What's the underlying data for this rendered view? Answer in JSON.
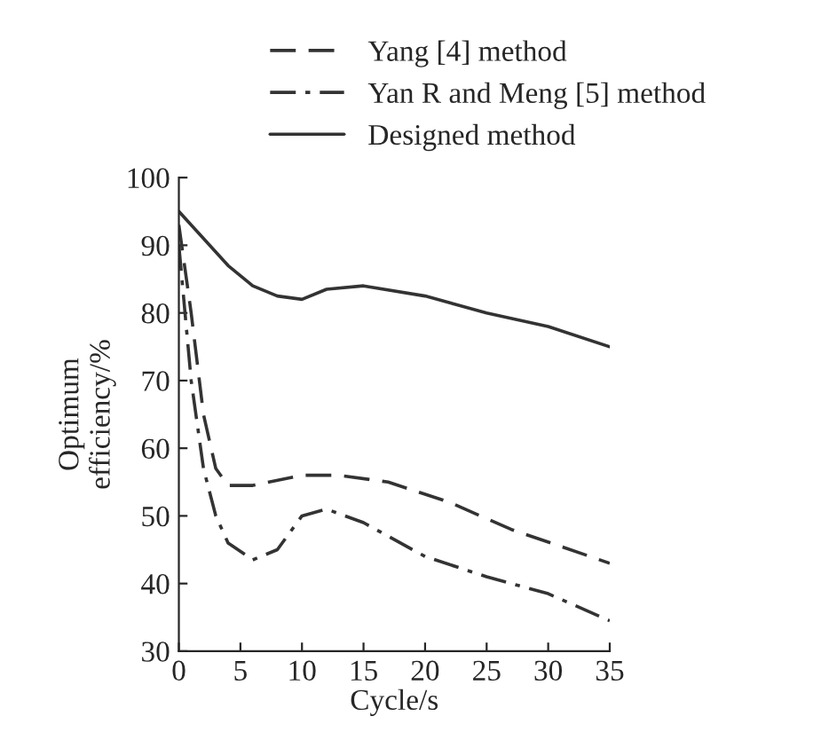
{
  "chart_data": {
    "type": "line",
    "xlabel": "Cycle/s",
    "ylabel": "Optimum\nefficiency/%",
    "xlim": [
      0,
      35
    ],
    "ylim": [
      30,
      100
    ],
    "xticks": [
      0,
      5,
      10,
      15,
      20,
      25,
      30,
      35
    ],
    "yticks": [
      30,
      40,
      50,
      60,
      70,
      80,
      90,
      100
    ],
    "grid": false,
    "legend": "top",
    "marker": "none",
    "series": [
      {
        "name": "Yang [4] method",
        "color": "#333333",
        "line_style": "dashed",
        "x": [
          0,
          1,
          2,
          3,
          4,
          6,
          10,
          13,
          17,
          22,
          27,
          35
        ],
        "values": [
          93,
          80,
          65,
          57,
          54.5,
          54.5,
          56,
          56,
          55,
          52,
          48,
          43
        ]
      },
      {
        "name": "Yan R and Meng [5] method",
        "color": "#333333",
        "line_style": "dashdot",
        "x": [
          0,
          0.5,
          1,
          2,
          3,
          4,
          6,
          8,
          10,
          12,
          15,
          20,
          25,
          30,
          35
        ],
        "values": [
          90,
          80,
          70,
          57,
          50,
          46,
          43.5,
          45,
          50,
          51,
          49,
          44,
          41,
          38.5,
          34.5
        ]
      },
      {
        "name": "Designed method",
        "color": "#333333",
        "line_style": "solid",
        "x": [
          0,
          2,
          4,
          6,
          8,
          10,
          12,
          15,
          20,
          25,
          30,
          35
        ],
        "values": [
          95,
          91,
          87,
          84,
          82.5,
          82,
          83.5,
          84,
          82.5,
          80,
          78,
          75
        ]
      }
    ]
  }
}
